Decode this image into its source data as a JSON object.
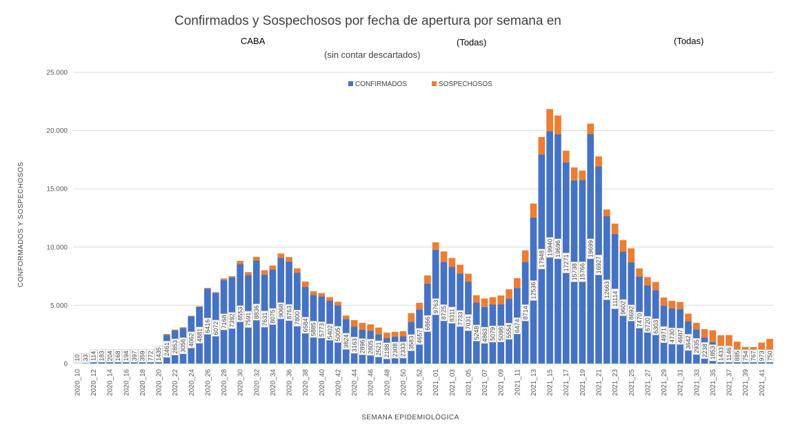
{
  "header": {
    "title": "Confirmados y Sospechosos por fecha de apertura por semana en",
    "region": "CABA",
    "filter1": "(Todas)",
    "filter2": "(Todas)",
    "subtitle": "(sin contar descartados)"
  },
  "colors": {
    "confirmados": "#4472C4",
    "sospechosos": "#ED7D31",
    "grid": "#D9D9D9"
  },
  "chart_data": {
    "type": "bar",
    "stacked": true,
    "xlabel": "SEMANA EPIDEMIOLÓGICA",
    "ylabel": "CONFORMADOS Y SOSPECHOSOS",
    "ylim": [
      0,
      25000
    ],
    "yticks": [
      0,
      5000,
      10000,
      15000,
      20000,
      25000
    ],
    "ytick_labels": [
      "0",
      "5.000",
      "10.000",
      "15.000",
      "20.000",
      "25.000"
    ],
    "legend_position": "top",
    "grid": true,
    "xtick_labels": [
      "2020_10",
      "2020_12",
      "2020_14",
      "2020_16",
      "2020_18",
      "2020_20",
      "2020_22",
      "2020_24",
      "2020_26",
      "2020_28",
      "2020_30",
      "2020_32",
      "2020_34",
      "2020_36",
      "2020_38",
      "2020_40",
      "2020_42",
      "2020_44",
      "2020_46",
      "2020_48",
      "2020_50",
      "2020_52",
      "2021_01",
      "2021_03",
      "2021_05",
      "2021_07",
      "2021_09",
      "2021_11",
      "2021_13",
      "2021_15",
      "2021_17",
      "2021_19",
      "2021_21",
      "2021_23",
      "2021_25",
      "2021_27",
      "2021_29",
      "2021_31",
      "2021_33",
      "2021_35",
      "2021_37",
      "2021_39",
      "2021_41"
    ],
    "series": [
      {
        "name": "CONFIRMADOS",
        "values": [
          10,
          33,
          114,
          183,
          204,
          168,
          194,
          397,
          359,
          772,
          1435,
          2461,
          2853,
          3056,
          4062,
          4881,
          6416,
          6072,
          7168,
          7392,
          8553,
          7591,
          8836,
          7631,
          8075,
          9068,
          8763,
          7800,
          6584,
          5885,
          5773,
          5402,
          5005,
          3824,
          3163,
          2896,
          2805,
          2521,
          2188,
          2308,
          2333,
          3583,
          4657,
          6866,
          9763,
          8725,
          8311,
          7733,
          7031,
          5248,
          4863,
          5079,
          5098,
          5554,
          6474,
          8714,
          12536,
          17948,
          19940,
          19696,
          17271,
          15738,
          15766,
          19699,
          16927,
          12663,
          11114,
          9602,
          8692,
          7470,
          6720,
          6303,
          4971,
          4730,
          4687,
          3642,
          2935,
          2238,
          1853,
          1433,
          1146,
          885,
          754,
          767,
          973,
          750
        ]
      },
      {
        "name": "SOSPECHOSOS",
        "values": [
          0,
          0,
          0,
          0,
          0,
          0,
          0,
          0,
          0,
          50,
          60,
          80,
          70,
          60,
          40,
          40,
          80,
          60,
          140,
          110,
          260,
          260,
          330,
          380,
          340,
          380,
          380,
          380,
          460,
          320,
          280,
          300,
          300,
          300,
          570,
          600,
          560,
          570,
          470,
          420,
          440,
          750,
          560,
          700,
          640,
          900,
          750,
          750,
          680,
          620,
          720,
          620,
          750,
          820,
          860,
          1000,
          1200,
          1500,
          1900,
          1600,
          1000,
          1100,
          800,
          900,
          860,
          560,
          900,
          1000,
          1200,
          700,
          700,
          700,
          700,
          660,
          600,
          640,
          560,
          720,
          1000,
          1000,
          1300,
          1000,
          680,
          650,
          830,
          1370
        ]
      }
    ],
    "value_labels": [
      "10",
      "33",
      "114",
      "183",
      "204",
      "168",
      "194",
      "397",
      "359",
      "772",
      "1435",
      "2461",
      "2853",
      "3056",
      "4062",
      "4881",
      "6416",
      "6072",
      "7168",
      "7392",
      "8553",
      "7591",
      "8836",
      "7631",
      "8075",
      "9068",
      "8763",
      "7800",
      "6584",
      "5885",
      "5773",
      "5402",
      "5005",
      "3824",
      "3163",
      "2896",
      "2805",
      "2521",
      "2188",
      "2308",
      "2333",
      "3583",
      "4657",
      "6866",
      "9763",
      "8725",
      "8311",
      "7733",
      "7031",
      "5248",
      "4863",
      "5079",
      "5098",
      "5554",
      "6474",
      "8714",
      "12536",
      "17948",
      "19940",
      "19696",
      "17271",
      "15738",
      "15766",
      "19699",
      "16927",
      "12663",
      "11114",
      "9602",
      "8692",
      "7470",
      "6720",
      "6303",
      "4971",
      "4730",
      "4687",
      "3642",
      "2935",
      "2238",
      "1853",
      "1433",
      "1146",
      "885",
      "754",
      "767",
      "973",
      "750"
    ]
  }
}
